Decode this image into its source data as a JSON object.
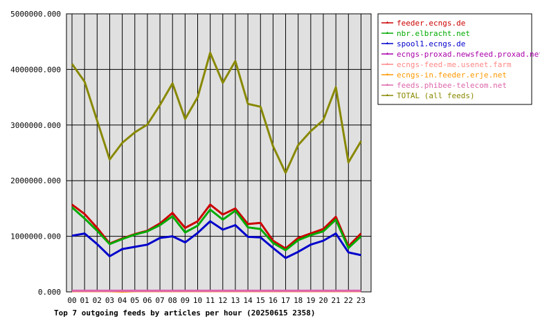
{
  "chart_data": {
    "type": "line",
    "title": "Top 7 outgoing feeds by articles per hour (20250615 2358)",
    "xlabel": "",
    "ylabel": "",
    "categories": [
      "00",
      "01",
      "02",
      "03",
      "04",
      "05",
      "06",
      "07",
      "08",
      "09",
      "10",
      "11",
      "12",
      "13",
      "14",
      "15",
      "16",
      "17",
      "18",
      "19",
      "20",
      "21",
      "22",
      "23"
    ],
    "ylim": [
      0,
      5000000
    ],
    "yticks": [
      0,
      1000000,
      2000000,
      3000000,
      4000000,
      5000000
    ],
    "ytick_labels": [
      "0.000",
      "1000000.000",
      "2000000.000",
      "3000000.000",
      "4000000.000",
      "5000000.000"
    ],
    "grid": true,
    "legend_position": "top-right",
    "series": [
      {
        "name": "feeder.ecngs.de",
        "color": "#cc0000",
        "values": [
          1570000,
          1400000,
          1150000,
          870000,
          960000,
          1040000,
          1100000,
          1230000,
          1420000,
          1150000,
          1270000,
          1570000,
          1390000,
          1500000,
          1220000,
          1240000,
          920000,
          780000,
          970000,
          1050000,
          1130000,
          1350000,
          820000,
          1050000
        ]
      },
      {
        "name": "nbr.elbracht.net",
        "color": "#00aa00",
        "values": [
          1520000,
          1320000,
          1100000,
          860000,
          950000,
          1030000,
          1090000,
          1200000,
          1360000,
          1070000,
          1190000,
          1480000,
          1300000,
          1460000,
          1160000,
          1130000,
          880000,
          750000,
          930000,
          1020000,
          1090000,
          1300000,
          790000,
          1000000
        ]
      },
      {
        "name": "spool1.ecngs.de",
        "color": "#0000cc",
        "values": [
          1010000,
          1050000,
          860000,
          640000,
          770000,
          810000,
          850000,
          970000,
          1000000,
          890000,
          1060000,
          1270000,
          1120000,
          1200000,
          990000,
          980000,
          790000,
          610000,
          720000,
          850000,
          920000,
          1050000,
          710000,
          660000
        ]
      },
      {
        "name": "ecngs-proxad.newsfeed.proxad.net",
        "color": "#aa00aa",
        "values": [
          20000,
          20000,
          20000,
          20000,
          20000,
          20000,
          20000,
          20000,
          20000,
          20000,
          20000,
          20000,
          20000,
          20000,
          20000,
          20000,
          20000,
          20000,
          20000,
          20000,
          20000,
          20000,
          20000,
          20000
        ]
      },
      {
        "name": "ecngs-feed-me.usenet.farm",
        "color": "#ff8888",
        "values": [
          15000,
          15000,
          15000,
          15000,
          15000,
          15000,
          15000,
          15000,
          15000,
          15000,
          15000,
          15000,
          15000,
          15000,
          15000,
          15000,
          15000,
          15000,
          15000,
          15000,
          15000,
          15000,
          15000,
          15000
        ]
      },
      {
        "name": "ecngs-in.feeder.erje.net",
        "color": "#ff9900",
        "values": [
          12000,
          12000,
          12000,
          12000,
          5000,
          12000,
          12000,
          12000,
          12000,
          12000,
          12000,
          12000,
          12000,
          12000,
          12000,
          12000,
          12000,
          12000,
          12000,
          12000,
          12000,
          12000,
          12000,
          12000
        ]
      },
      {
        "name": "feeds.phibee-telecom.net",
        "color": "#dd66aa",
        "values": [
          18000,
          18000,
          18000,
          18000,
          18000,
          18000,
          18000,
          18000,
          18000,
          18000,
          18000,
          18000,
          18000,
          18000,
          18000,
          18000,
          18000,
          18000,
          18000,
          18000,
          18000,
          18000,
          18000,
          18000
        ]
      },
      {
        "name": "TOTAL (all feeds)",
        "color": "#888800",
        "values": [
          4100000,
          3780000,
          3080000,
          2380000,
          2680000,
          2870000,
          3010000,
          3360000,
          3750000,
          3110000,
          3500000,
          4300000,
          3760000,
          4150000,
          3380000,
          3330000,
          2620000,
          2140000,
          2640000,
          2890000,
          3090000,
          3680000,
          2330000,
          2710000
        ]
      }
    ]
  }
}
